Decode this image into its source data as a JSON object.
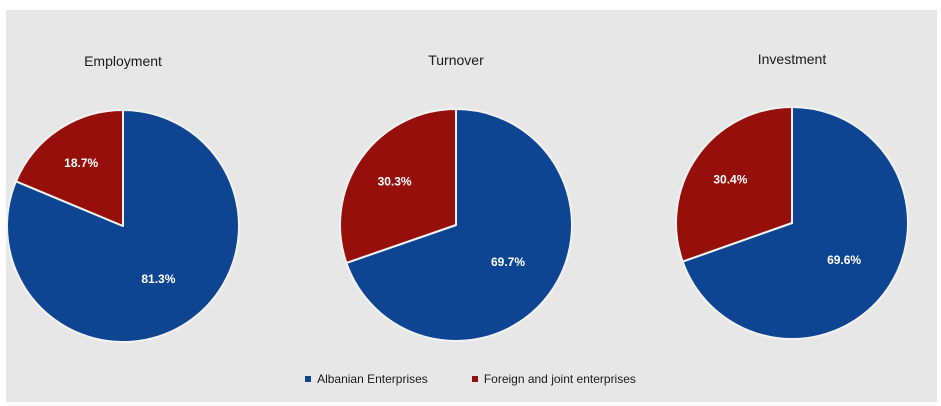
{
  "colors": {
    "albanian": "#0d4592",
    "foreign": "#960f0b",
    "background": "#e7e7e7",
    "separator": "#f2f2f2"
  },
  "legend": {
    "albanian": "Albanian Enterprises",
    "foreign": "Foreign and joint enterprises"
  },
  "chart_data": [
    {
      "type": "pie",
      "title": "Employment",
      "slices": [
        {
          "name": "Albanian Enterprises",
          "value": 81.3,
          "label": "81.3%"
        },
        {
          "name": "Foreign and joint enterprises",
          "value": 18.7,
          "label": "18.7%"
        }
      ]
    },
    {
      "type": "pie",
      "title": "Turnover",
      "slices": [
        {
          "name": "Albanian Enterprises",
          "value": 69.7,
          "label": "69.7%"
        },
        {
          "name": "Foreign and joint enterprises",
          "value": 30.3,
          "label": "30.3%"
        }
      ]
    },
    {
      "type": "pie",
      "title": "Investment",
      "slices": [
        {
          "name": "Albanian Enterprises",
          "value": 69.6,
          "label": "69.6%"
        },
        {
          "name": "Foreign and joint enterprises",
          "value": 30.4,
          "label": "30.4%"
        }
      ]
    }
  ]
}
